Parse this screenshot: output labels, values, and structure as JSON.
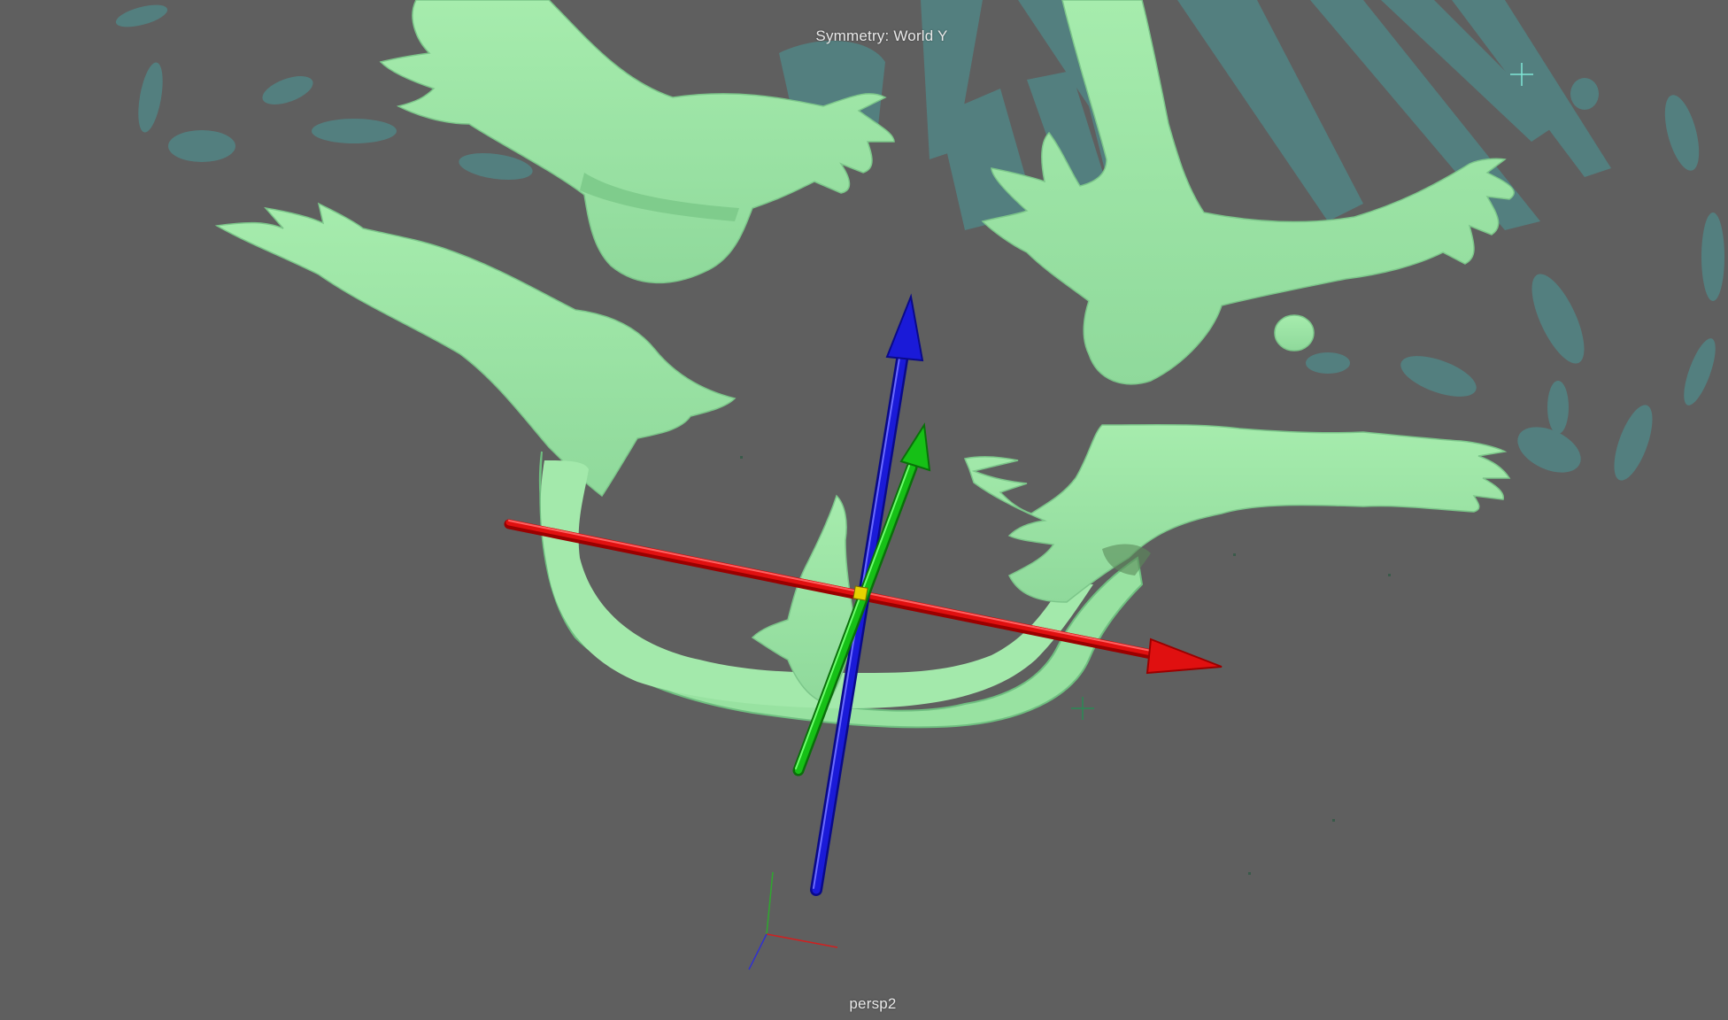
{
  "viewport": {
    "symmetry_text": "Symmetry: World Y",
    "camera_name": "persp2"
  },
  "scene": {
    "background_color": "#5f5f5f",
    "mesh_color": "#9ee6a5",
    "mesh_shadow_color": "#6fbf80",
    "ghost_mesh_color": "#4a9a9a",
    "gizmo": {
      "x_axis_color": "#e01010",
      "y_axis_color": "#16c016",
      "z_axis_color": "#1a1ad8"
    },
    "icons": [
      "move-manipulator-icon",
      "view-axis-indicator-icon",
      "locator-icon"
    ]
  }
}
